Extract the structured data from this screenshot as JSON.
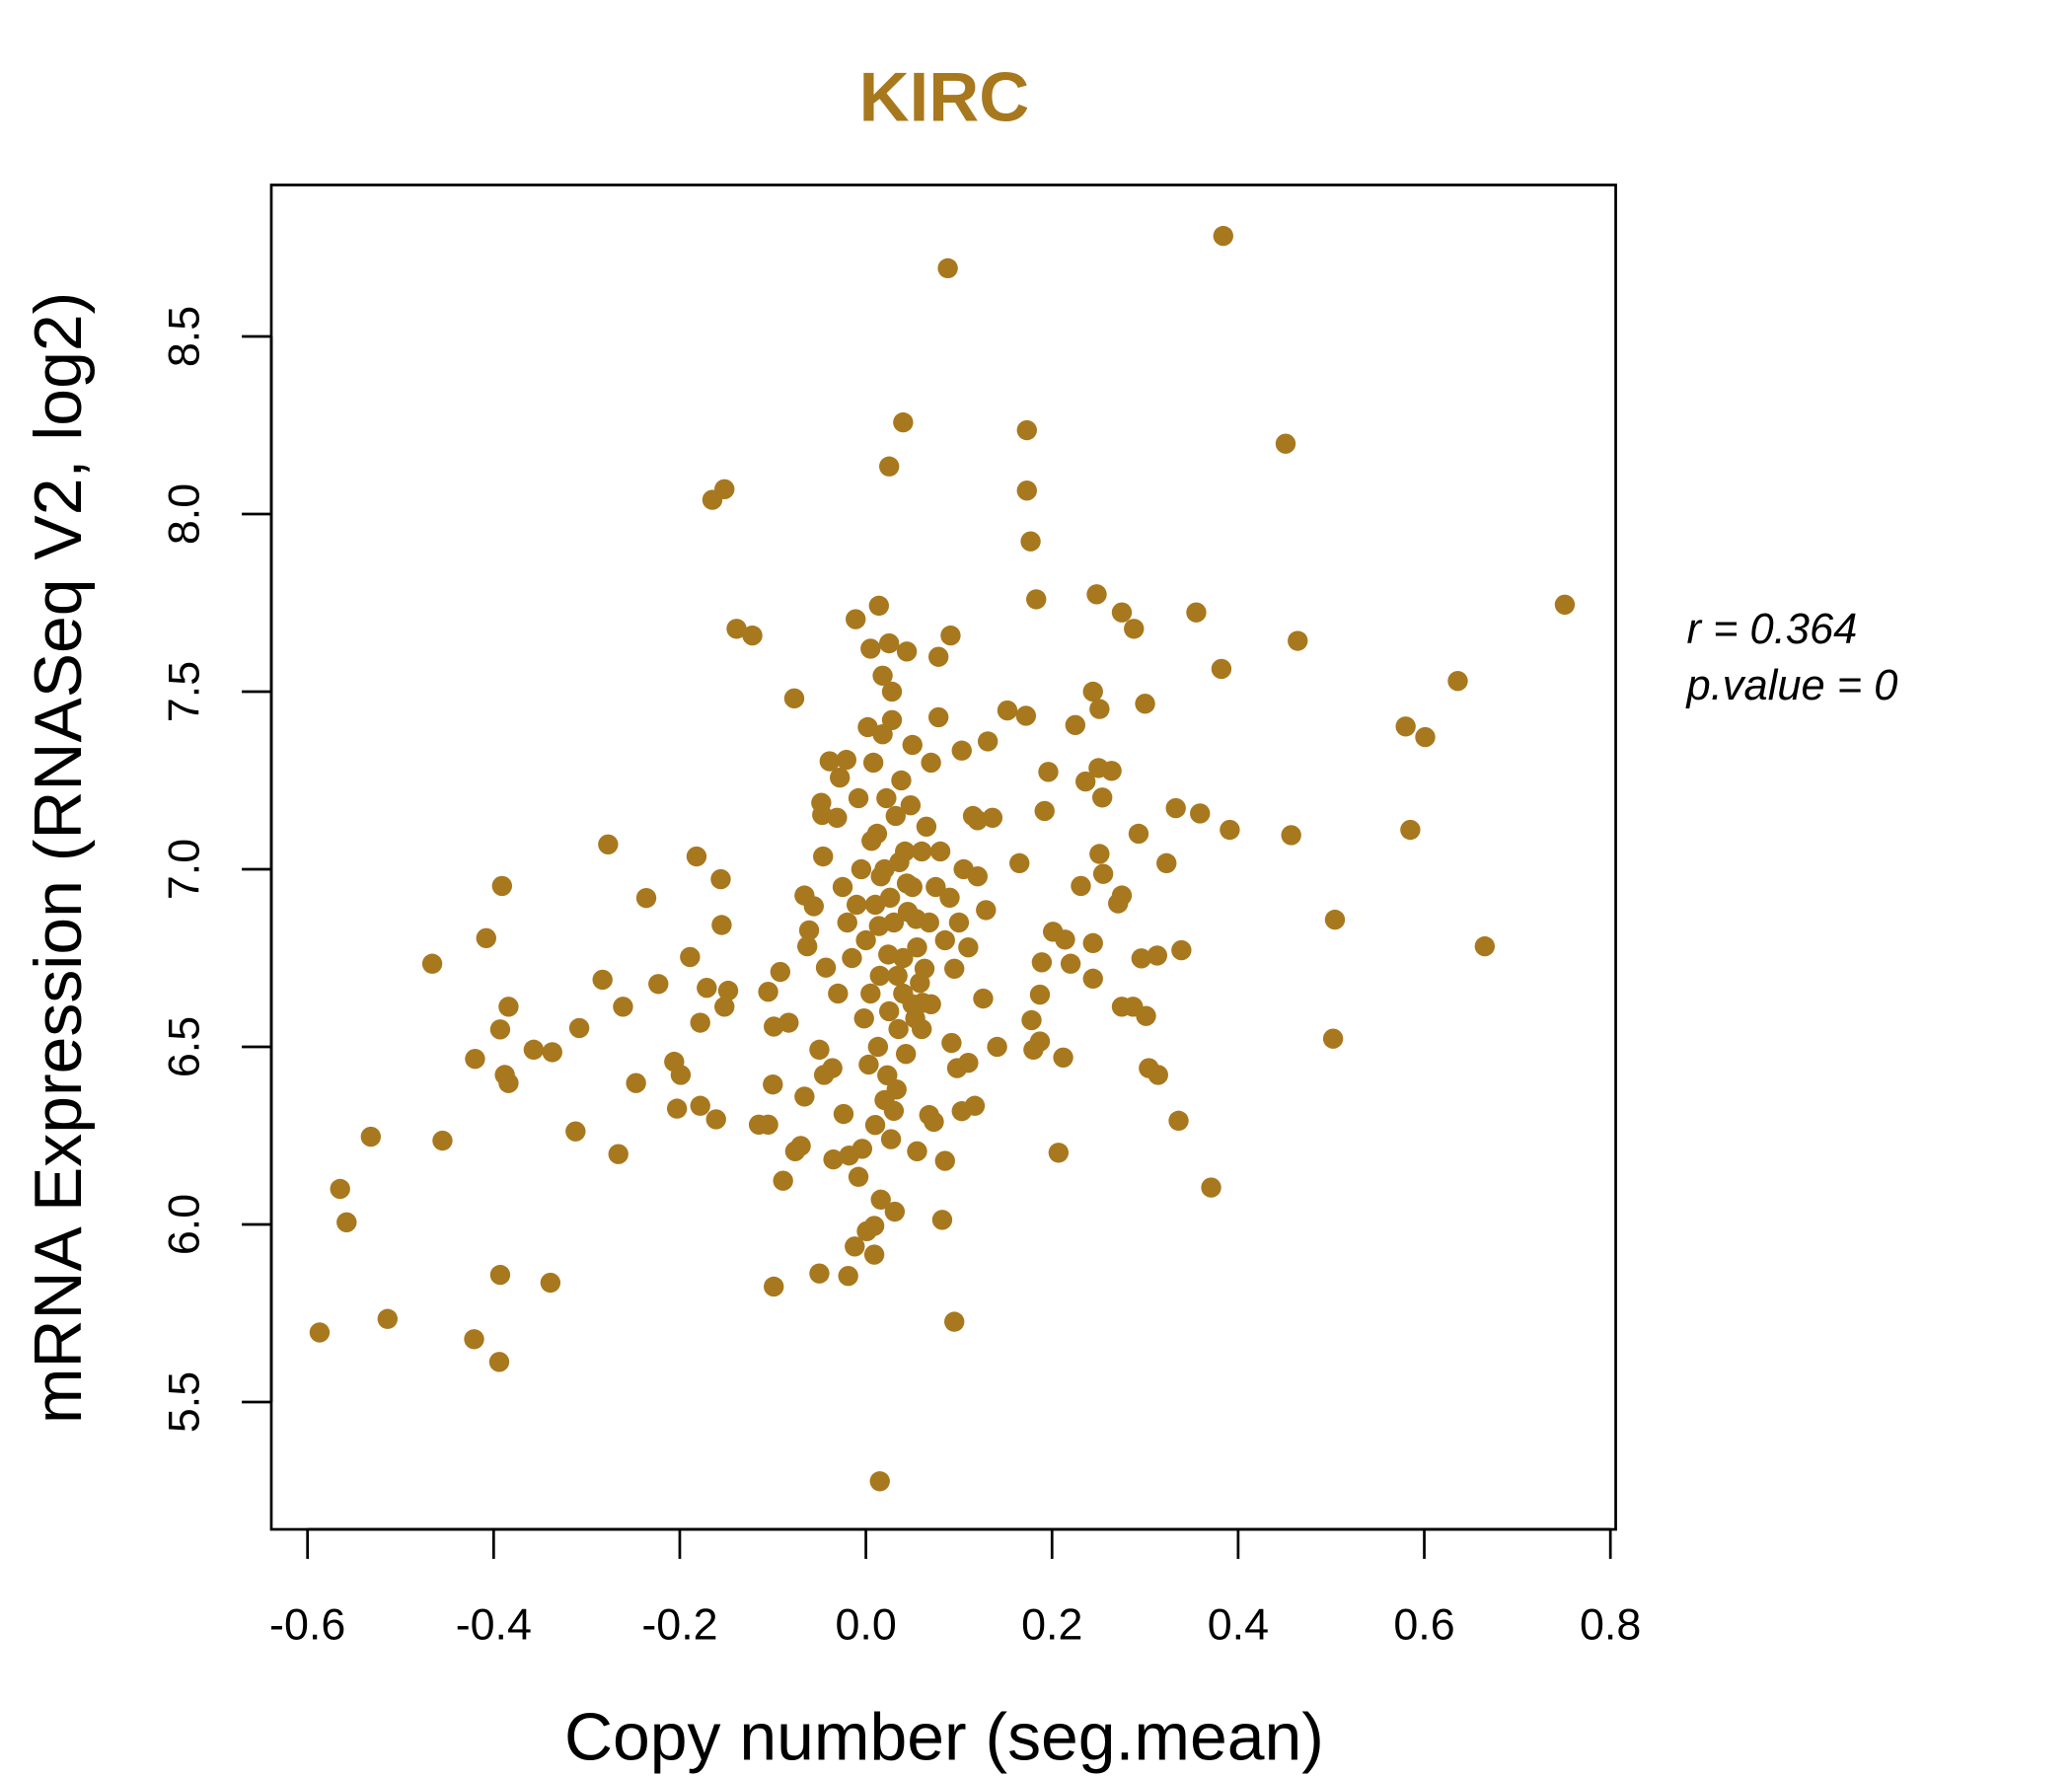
{
  "chart_data": {
    "type": "scatter",
    "title": "KIRC",
    "xlabel": "Copy number (seg.mean)",
    "ylabel": "mRNA Expression (RNASeq V2, log2)",
    "xlim": [
      -0.64,
      0.81
    ],
    "ylim": [
      5.17,
      8.93
    ],
    "xticks": [
      "-0.6",
      "-0.4",
      "-0.2",
      "0.0",
      "0.2",
      "0.4",
      "0.6",
      "0.8"
    ],
    "yticks": [
      "5.5",
      "6.0",
      "6.5",
      "7.0",
      "7.5",
      "8.0",
      "8.5"
    ],
    "grid": false,
    "point_color": "#A8781E",
    "annotation": {
      "r": "r = 0.364",
      "p": "p.value = 0"
    },
    "points": [
      [
        -0.587,
        5.696
      ],
      [
        -0.565,
        6.1
      ],
      [
        -0.558,
        6.006
      ],
      [
        -0.532,
        6.247
      ],
      [
        -0.514,
        5.734
      ],
      [
        -0.466,
        6.734
      ],
      [
        -0.455,
        6.236
      ],
      [
        -0.42,
        6.466
      ],
      [
        -0.421,
        5.677
      ],
      [
        -0.408,
        6.806
      ],
      [
        -0.394,
        5.613
      ],
      [
        -0.393,
        5.858
      ],
      [
        -0.391,
        6.953
      ],
      [
        -0.393,
        6.549
      ],
      [
        -0.388,
        6.421
      ],
      [
        -0.384,
        6.398
      ],
      [
        -0.384,
        6.613
      ],
      [
        -0.357,
        6.492
      ],
      [
        -0.339,
        5.836
      ],
      [
        -0.337,
        6.485
      ],
      [
        -0.312,
        6.262
      ],
      [
        -0.308,
        6.553
      ],
      [
        -0.283,
        6.689
      ],
      [
        -0.277,
        7.07
      ],
      [
        -0.266,
        6.198
      ],
      [
        -0.261,
        6.613
      ],
      [
        -0.247,
        6.398
      ],
      [
        -0.236,
        6.919
      ],
      [
        -0.223,
        6.677
      ],
      [
        -0.206,
        6.458
      ],
      [
        -0.203,
        6.326
      ],
      [
        -0.199,
        6.421
      ],
      [
        -0.189,
        6.753
      ],
      [
        -0.182,
        7.036
      ],
      [
        -0.178,
        6.334
      ],
      [
        -0.178,
        6.568
      ],
      [
        -0.171,
        6.666
      ],
      [
        -0.165,
        8.04
      ],
      [
        -0.161,
        6.296
      ],
      [
        -0.156,
        6.972
      ],
      [
        -0.155,
        6.843
      ],
      [
        -0.152,
        8.07
      ],
      [
        -0.152,
        6.613
      ],
      [
        -0.148,
        6.658
      ],
      [
        -0.139,
        7.677
      ],
      [
        -0.122,
        7.658
      ],
      [
        -0.115,
        6.281
      ],
      [
        -0.105,
        6.281
      ],
      [
        -0.105,
        6.655
      ],
      [
        -0.1,
        6.394
      ],
      [
        -0.099,
        5.825
      ],
      [
        -0.099,
        6.557
      ],
      [
        -0.092,
        6.711
      ],
      [
        -0.089,
        6.123
      ],
      [
        -0.083,
        6.568
      ],
      [
        -0.077,
        7.481
      ],
      [
        -0.076,
        6.206
      ],
      [
        -0.07,
        6.221
      ],
      [
        -0.066,
        6.36
      ],
      [
        -0.066,
        6.926
      ],
      [
        -0.063,
        6.783
      ],
      [
        -0.061,
        6.828
      ],
      [
        -0.056,
        6.896
      ],
      [
        -0.05,
        5.862
      ],
      [
        -0.05,
        6.492
      ],
      [
        -0.048,
        7.187
      ],
      [
        -0.047,
        7.153
      ],
      [
        -0.046,
        7.036
      ],
      [
        -0.045,
        6.421
      ],
      [
        -0.043,
        6.723
      ],
      [
        -0.039,
        7.304
      ],
      [
        -0.036,
        6.44
      ],
      [
        -0.035,
        6.183
      ],
      [
        -0.031,
        7.145
      ],
      [
        -0.028,
        7.258
      ],
      [
        -0.024,
        6.311
      ],
      [
        -0.021,
        7.308
      ],
      [
        -0.019,
        5.855
      ],
      [
        -0.018,
        6.194
      ],
      [
        -0.012,
        5.938
      ],
      [
        -0.011,
        7.704
      ],
      [
        -0.008,
        6.134
      ],
      [
        -0.004,
        6.213
      ],
      [
        0.001,
        5.981
      ],
      [
        0.005,
        7.621
      ],
      [
        0.009,
        5.996
      ],
      [
        0.009,
        5.915
      ],
      [
        0.014,
        7.742
      ],
      [
        0.015,
        5.277
      ],
      [
        0.016,
        6.07
      ],
      [
        0.018,
        7.545
      ],
      [
        0.025,
        8.134
      ],
      [
        0.025,
        7.636
      ],
      [
        0.027,
        6.24
      ],
      [
        0.031,
        6.036
      ],
      [
        0.04,
        8.258
      ],
      [
        0.044,
        7.613
      ],
      [
        0.055,
        6.206
      ],
      [
        0.061,
        6.624
      ],
      [
        0.068,
        6.308
      ],
      [
        0.073,
        6.289
      ],
      [
        0.078,
        7.598
      ],
      [
        0.078,
        7.428
      ],
      [
        0.082,
        6.013
      ],
      [
        0.085,
        6.179
      ],
      [
        0.088,
        8.692
      ],
      [
        0.091,
        7.658
      ],
      [
        0.092,
        6.511
      ],
      [
        0.095,
        5.726
      ],
      [
        0.098,
        6.44
      ],
      [
        0.103,
        6.319
      ],
      [
        0.103,
        7.334
      ],
      [
        0.11,
        6.455
      ],
      [
        0.117,
        6.334
      ],
      [
        0.12,
        7.138
      ],
      [
        0.126,
        6.636
      ],
      [
        0.129,
        6.885
      ],
      [
        0.131,
        7.36
      ],
      [
        0.136,
        7.145
      ],
      [
        0.141,
        6.5
      ],
      [
        0.152,
        7.447
      ],
      [
        0.165,
        7.017
      ],
      [
        0.172,
        7.432
      ],
      [
        0.173,
        8.236
      ],
      [
        0.173,
        8.066
      ],
      [
        0.177,
        7.923
      ],
      [
        0.178,
        6.575
      ],
      [
        0.18,
        6.492
      ],
      [
        0.183,
        7.76
      ],
      [
        0.187,
        6.515
      ],
      [
        0.187,
        6.647
      ],
      [
        0.189,
        6.738
      ],
      [
        0.192,
        7.164
      ],
      [
        0.196,
        7.274
      ],
      [
        0.201,
        6.824
      ],
      [
        0.207,
        6.202
      ],
      [
        0.212,
        6.47
      ],
      [
        0.214,
        6.802
      ],
      [
        0.22,
        6.734
      ],
      [
        0.225,
        7.406
      ],
      [
        0.231,
        6.953
      ],
      [
        0.236,
        7.247
      ],
      [
        0.244,
        6.692
      ],
      [
        0.244,
        7.5
      ],
      [
        0.244,
        6.792
      ],
      [
        0.248,
        7.774
      ],
      [
        0.25,
        7.285
      ],
      [
        0.251,
        7.451
      ],
      [
        0.251,
        7.043
      ],
      [
        0.254,
        7.202
      ],
      [
        0.255,
        6.987
      ],
      [
        0.264,
        7.277
      ],
      [
        0.271,
        6.904
      ],
      [
        0.275,
        7.723
      ],
      [
        0.275,
        6.926
      ],
      [
        0.275,
        6.613
      ],
      [
        0.287,
        6.613
      ],
      [
        0.288,
        7.677
      ],
      [
        0.293,
        7.1
      ],
      [
        0.296,
        6.749
      ],
      [
        0.3,
        7.466
      ],
      [
        0.301,
        6.587
      ],
      [
        0.304,
        6.44
      ],
      [
        0.313,
        6.757
      ],
      [
        0.314,
        6.421
      ],
      [
        0.323,
        7.017
      ],
      [
        0.333,
        7.172
      ],
      [
        0.336,
        6.292
      ],
      [
        0.339,
        6.772
      ],
      [
        0.355,
        7.723
      ],
      [
        0.359,
        7.157
      ],
      [
        0.371,
        6.104
      ],
      [
        0.382,
        7.564
      ],
      [
        0.384,
        8.783
      ],
      [
        0.391,
        7.111
      ],
      [
        0.451,
        8.198
      ],
      [
        0.457,
        7.096
      ],
      [
        0.464,
        7.643
      ],
      [
        0.502,
        6.523
      ],
      [
        0.504,
        6.858
      ],
      [
        0.58,
        7.402
      ],
      [
        0.585,
        7.111
      ],
      [
        0.601,
        7.372
      ],
      [
        0.636,
        7.53
      ],
      [
        0.665,
        6.783
      ],
      [
        0.751,
        7.745
      ],
      [
        0.0,
        6.8
      ],
      [
        0.01,
        6.9
      ],
      [
        0.02,
        7.0
      ],
      [
        0.03,
        6.85
      ],
      [
        0.04,
        6.75
      ],
      [
        0.05,
        6.95
      ],
      [
        0.015,
        6.7
      ],
      [
        0.025,
        6.6
      ],
      [
        0.035,
        6.55
      ],
      [
        0.005,
        6.65
      ],
      [
        0.045,
        6.88
      ],
      [
        0.055,
        6.78
      ],
      [
        0.06,
        7.05
      ],
      [
        0.012,
        7.1
      ],
      [
        0.022,
        7.2
      ],
      [
        0.032,
        7.15
      ],
      [
        0.042,
        7.05
      ],
      [
        -0.005,
        7.0
      ],
      [
        -0.01,
        6.9
      ],
      [
        0.008,
        7.3
      ],
      [
        0.018,
        7.38
      ],
      [
        0.028,
        7.42
      ],
      [
        0.038,
        7.25
      ],
      [
        0.048,
        7.18
      ],
      [
        0.058,
        6.68
      ],
      [
        0.068,
        6.85
      ],
      [
        0.075,
        6.95
      ],
      [
        0.065,
        7.12
      ],
      [
        0.003,
        6.45
      ],
      [
        0.013,
        6.5
      ],
      [
        0.023,
        6.42
      ],
      [
        0.033,
        6.38
      ],
      [
        0.043,
        6.48
      ],
      [
        0.053,
        6.58
      ],
      [
        0.063,
        6.72
      ],
      [
        -0.002,
        6.58
      ],
      [
        -0.015,
        6.75
      ],
      [
        -0.02,
        6.85
      ],
      [
        0.07,
        7.3
      ],
      [
        0.08,
        7.05
      ],
      [
        0.085,
        6.8
      ],
      [
        0.09,
        6.92
      ],
      [
        0.095,
        6.72
      ],
      [
        0.1,
        6.85
      ],
      [
        0.105,
        7.0
      ],
      [
        0.02,
        6.35
      ],
      [
        0.03,
        6.32
      ],
      [
        0.01,
        6.28
      ],
      [
        0.04,
        6.65
      ],
      [
        0.05,
        6.62
      ],
      [
        0.016,
        6.98
      ],
      [
        0.026,
        6.92
      ],
      [
        0.036,
        7.02
      ],
      [
        0.006,
        7.08
      ],
      [
        -0.008,
        7.2
      ],
      [
        0.044,
        6.96
      ],
      [
        0.054,
        6.86
      ],
      [
        0.024,
        6.76
      ],
      [
        0.034,
        6.7
      ],
      [
        0.014,
        6.84
      ],
      [
        0.06,
        6.55
      ],
      [
        0.07,
        6.62
      ],
      [
        -0.025,
        6.95
      ],
      [
        -0.03,
        6.65
      ],
      [
        0.002,
        7.4
      ],
      [
        0.028,
        7.5
      ],
      [
        0.05,
        7.35
      ],
      [
        0.11,
        6.78
      ],
      [
        0.115,
        7.15
      ],
      [
        0.12,
        6.98
      ]
    ]
  }
}
